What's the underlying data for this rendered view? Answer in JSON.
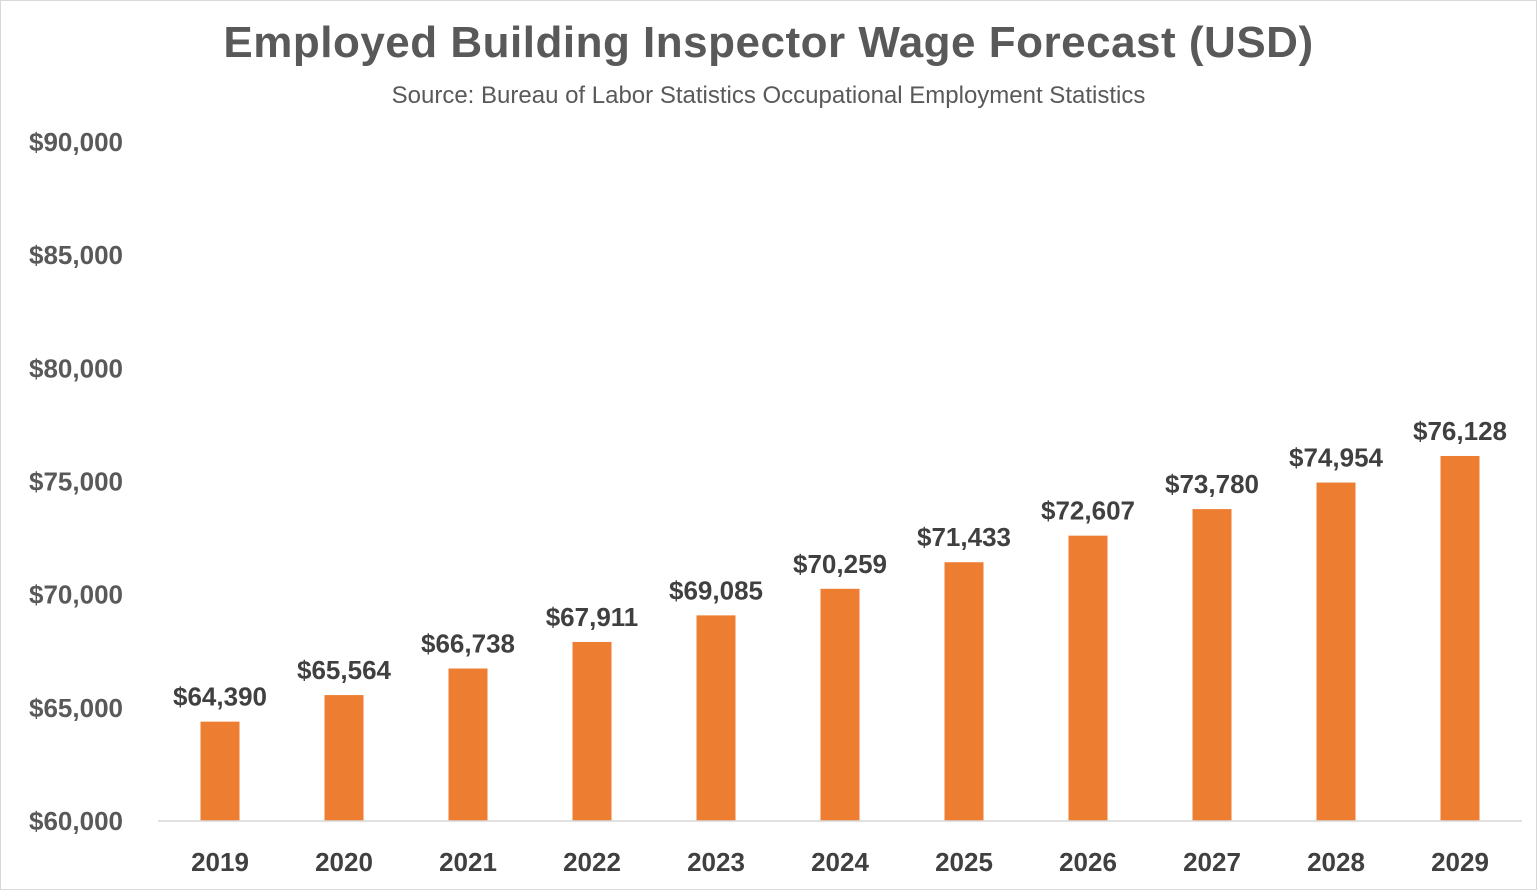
{
  "chart_data": {
    "type": "bar",
    "title": "Employed Building Inspector Wage Forecast (USD)",
    "subtitle": "Source: Bureau of Labor Statistics Occupational Employment Statistics",
    "categories": [
      "2019",
      "2020",
      "2021",
      "2022",
      "2023",
      "2024",
      "2025",
      "2026",
      "2027",
      "2028",
      "2029"
    ],
    "values": [
      64390,
      65564,
      66738,
      67911,
      69085,
      70259,
      71433,
      72607,
      73780,
      74954,
      76128
    ],
    "data_labels": [
      "$64,390",
      "$65,564",
      "$66,738",
      "$67,911",
      "$69,085",
      "$70,259",
      "$71,433",
      "$72,607",
      "$73,780",
      "$74,954",
      "$76,128"
    ],
    "y_ticks": [
      60000,
      65000,
      70000,
      75000,
      80000,
      85000,
      90000
    ],
    "y_tick_labels": [
      "$60,000",
      "$65,000",
      "$70,000",
      "$75,000",
      "$80,000",
      "$85,000",
      "$90,000"
    ],
    "ylim": [
      60000,
      90000
    ],
    "xlabel": "",
    "ylabel": "",
    "grid": false,
    "legend": "none",
    "bar_color": "#ED7D31",
    "text_color": "#595959"
  }
}
